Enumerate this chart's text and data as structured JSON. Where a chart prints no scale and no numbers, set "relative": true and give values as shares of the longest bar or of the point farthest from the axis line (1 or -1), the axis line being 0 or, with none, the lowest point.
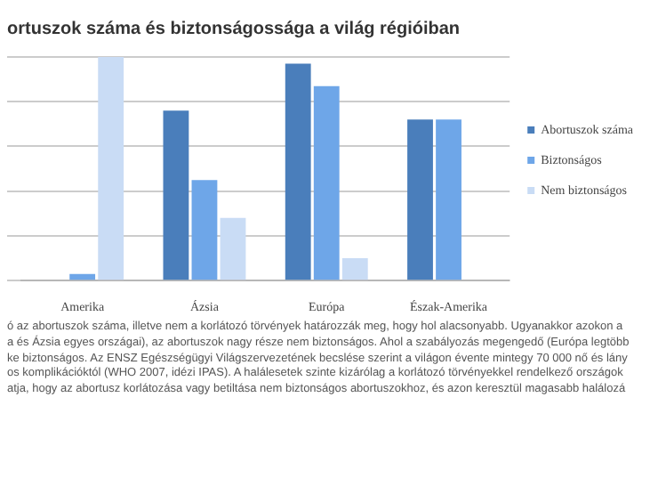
{
  "chart_data": {
    "type": "bar",
    "title": "ortuszok száma és biztonságossága a világ régióiban",
    "relative": true,
    "grid": "y",
    "legend": "right",
    "categories": [
      "Amerika",
      "Ázsia",
      "Európa",
      "Észak-Amerika"
    ],
    "series": [
      {
        "name": "Abortuszok száma",
        "color": "#4a7ebb",
        "values": [
          null,
          0.76,
          0.97,
          0.72
        ]
      },
      {
        "name": "Biztonságos",
        "color": "#6ea6e8",
        "values": [
          0.03,
          0.45,
          0.87,
          0.72
        ]
      },
      {
        "name": "Nem biztonságos",
        "color": "#c9dcf5",
        "values": [
          1,
          0.28,
          0.1,
          0
        ]
      }
    ],
    "annotations": [
      "ó az abortuszok száma, illetve nem a korlátozó törvények határozzák meg, hogy hol alacsonyabb. Ugyanakkor azokon a",
      "a és Ázsia egyes országai), az abortuszok nagy része nem biztonságos. Ahol a szabályozás megengedő (Európa legtöbb",
      "ke biztonságos. Az ENSZ Egészségügyi Világszervezetének becslése szerint a világon évente mintegy 70 000 nő és lány",
      "os komplikációktól (WHO 2007, idézi IPAS). A halálesetek szinte kizárólag a korlátozó törvényekkel rendelkező országok",
      "atja, hogy az abortusz korlátozása vagy betiltása nem biztonságos abortuszokhoz, és azon keresztül magasabb halálozá"
    ]
  }
}
